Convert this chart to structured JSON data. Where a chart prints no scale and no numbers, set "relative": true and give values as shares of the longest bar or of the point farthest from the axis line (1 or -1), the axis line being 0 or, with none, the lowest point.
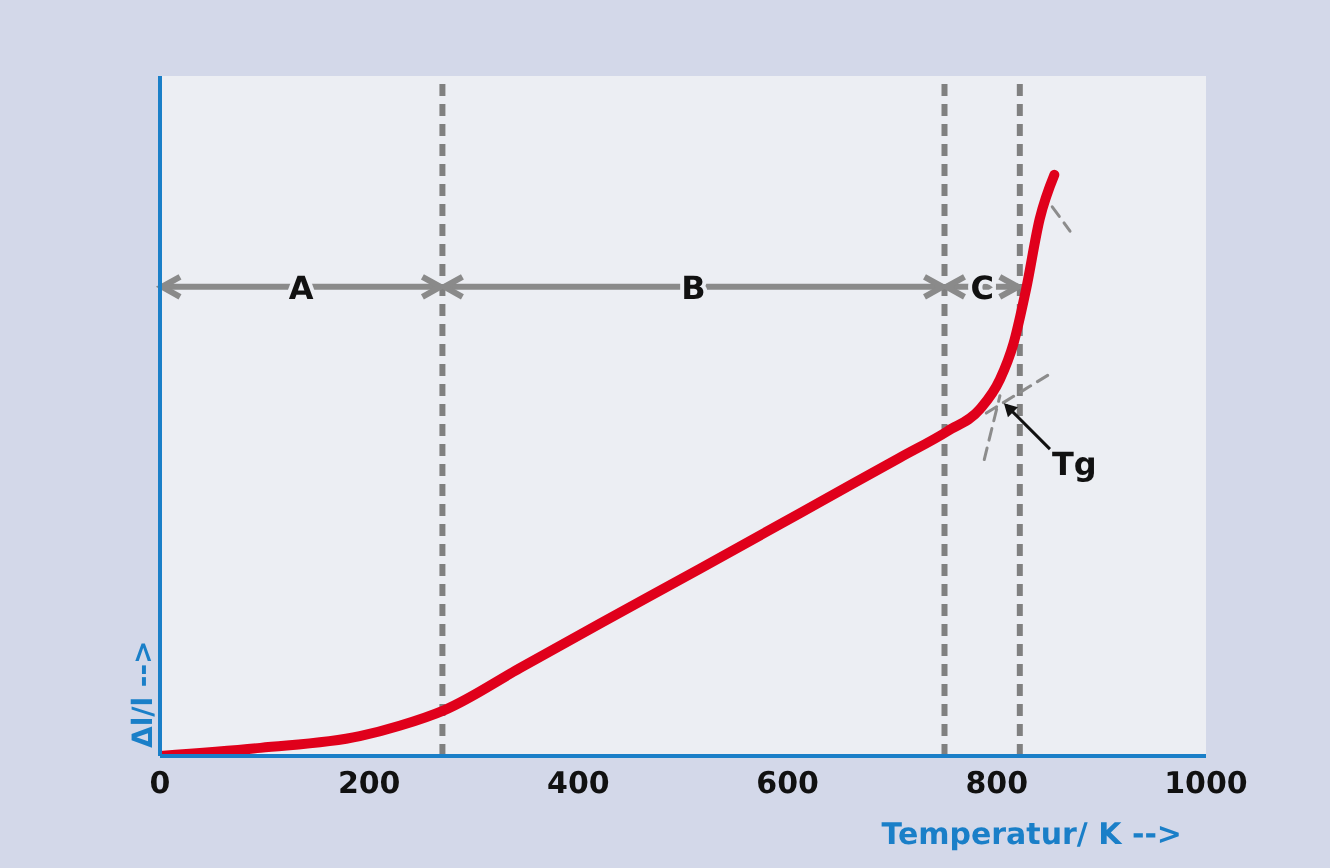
{
  "chart_data": {
    "type": "line",
    "relative": true,
    "xlabel": "Temperatur/ K -->",
    "ylabel": "Δl/l -->",
    "xlim": [
      0,
      1000
    ],
    "xticks": [
      0,
      200,
      400,
      600,
      800,
      1000
    ],
    "grid": false,
    "legend": false,
    "marker": "none",
    "series": [
      {
        "color": "#e0001b",
        "line_style": "solid",
        "x": [
          0,
          96,
          191,
          229,
          272,
          344,
          421,
          516,
          612,
          707,
          753,
          784,
          803,
          816,
          828,
          841,
          855
        ],
        "values": [
          0,
          0.014,
          0.034,
          0.052,
          0.079,
          0.151,
          0.228,
          0.322,
          0.418,
          0.513,
          0.559,
          0.597,
          0.648,
          0.71,
          0.803,
          0.924,
          1
        ]
      },
      {
        "type": "line",
        "color": "#8c8c8c",
        "line_style": "dashed",
        "x": [
          788,
          803
        ],
        "values": [
          0.51,
          0.62
        ]
      },
      {
        "type": "line",
        "color": "#8c8c8c",
        "line_style": "dashed",
        "x": [
          790,
          855
        ],
        "values": [
          0.59,
          0.662
        ]
      },
      {
        "type": "line",
        "color": "#8c8c8c",
        "line_style": "dashed",
        "x": [
          853,
          870
        ],
        "values": [
          0.945,
          0.903
        ]
      }
    ],
    "ref_lines": [
      {
        "axis": "x",
        "value": 270,
        "color": "#808080",
        "line_style": "dashed"
      },
      {
        "axis": "x",
        "value": 750,
        "color": "#808080",
        "line_style": "dashed"
      },
      {
        "axis": "x",
        "value": 822,
        "color": "#808080",
        "line_style": "dashed"
      }
    ],
    "annotations": [
      "A",
      "B",
      "C",
      {
        "text": "Tg",
        "x": 803,
        "y": 0.614
      }
    ]
  }
}
